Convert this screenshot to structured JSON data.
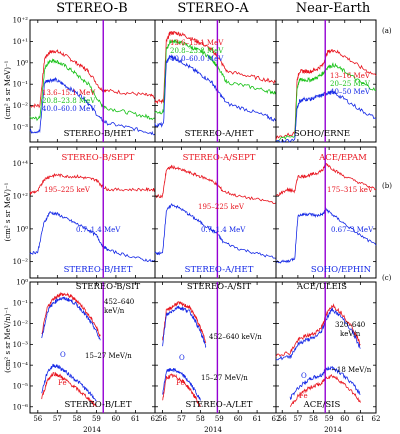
{
  "figure": {
    "columns": [
      "STEREO-B",
      "STEREO-A",
      "Near-Earth"
    ],
    "row_tags": [
      "(a)",
      "(b)",
      "(c)"
    ],
    "x_axis_year": "2014",
    "x_ticks": [
      "56",
      "57",
      "58",
      "59",
      "60",
      "61",
      "62"
    ],
    "ylabels": {
      "a": "(cm² s sr MeV)⁻¹",
      "b": "(cm² s sr MeV)⁻¹",
      "c": "(cm² s sr MeV/n)⁻¹"
    },
    "yticks": {
      "a": [
        "10⁻³",
        "10⁻²",
        "10⁻¹",
        "10⁰",
        "10⁺¹",
        "10⁺²"
      ],
      "b": [
        "10⁻²",
        "10⁰",
        "10⁺²",
        "10⁺⁴"
      ],
      "c": [
        "10⁻⁶",
        "10⁻⁵",
        "10⁻⁴",
        "10⁻³",
        "10⁻²",
        "10⁻¹",
        "10⁰"
      ]
    },
    "vertical_line_color": "#9400d3",
    "colors": {
      "red": "#e8141e",
      "green": "#19c219",
      "blue": "#1428e6",
      "black": "#000000"
    }
  },
  "chart_data": [
    {
      "type": "line",
      "row": "a",
      "col": 0,
      "instrument": "STEREO-B/HET",
      "ylog": [
        -3.7,
        2
      ],
      "xlim": [
        55.6,
        62
      ],
      "vline": 59.35,
      "series": [
        {
          "name": "13.6–15.1 MeV",
          "color": "red",
          "x": [
            55.6,
            56.1,
            56.35,
            56.6,
            56.9,
            57.3,
            57.8,
            58.3,
            58.6,
            59.2,
            59.5,
            60.5,
            61.5,
            62
          ],
          "y": [
            -2.0,
            -2.0,
            0.2,
            0.5,
            0.55,
            0.4,
            0.1,
            -0.2,
            -0.4,
            -1.2,
            -1.3,
            -1.4,
            -1.5,
            -1.6
          ]
        },
        {
          "name": "20.8–23.8 MeV",
          "color": "green",
          "x": [
            55.6,
            56.1,
            56.35,
            56.6,
            56.9,
            57.3,
            57.8,
            58.3,
            58.6,
            59.2,
            59.5,
            60.5,
            61.5,
            62
          ],
          "y": [
            -2.6,
            -2.6,
            -0.3,
            0.1,
            0.1,
            -0.1,
            -0.4,
            -0.8,
            -1.0,
            -1.9,
            -2.1,
            -2.3,
            -2.5,
            -2.6
          ]
        },
        {
          "name": "40.0–60.0 MeV",
          "color": "blue",
          "x": [
            55.6,
            56.1,
            56.35,
            56.6,
            56.9,
            57.3,
            57.8,
            58.3,
            58.6,
            59.2,
            59.5,
            60.5,
            61.5,
            62
          ],
          "y": [
            -3.2,
            -3.2,
            -0.9,
            -0.8,
            -0.8,
            -1.0,
            -1.3,
            -1.6,
            -1.9,
            -2.6,
            -2.8,
            -3.0,
            -3.2,
            -3.3
          ]
        }
      ]
    },
    {
      "type": "line",
      "row": "a",
      "col": 1,
      "instrument": "STEREO-A/HET",
      "ylog": [
        -3.7,
        2
      ],
      "xlim": [
        55.6,
        62
      ],
      "vline": 58.9,
      "series": [
        {
          "name": "13.6–15.1 MeV",
          "color": "red",
          "x": [
            55.6,
            56.05,
            56.2,
            56.4,
            56.7,
            57.1,
            57.6,
            58.1,
            58.6,
            58.9,
            59.4,
            60.5,
            61.5,
            62
          ],
          "y": [
            -1.8,
            -1.8,
            1.0,
            1.4,
            1.4,
            1.3,
            1.1,
            0.9,
            0.6,
            0.3,
            -0.4,
            -0.6,
            -0.8,
            -0.9
          ]
        },
        {
          "name": "20.8–23.8 MeV",
          "color": "green",
          "x": [
            55.6,
            56.05,
            56.2,
            56.4,
            56.7,
            57.1,
            57.6,
            58.1,
            58.6,
            58.9,
            59.4,
            60.5,
            61.5,
            62
          ],
          "y": [
            -2.3,
            -2.3,
            0.6,
            1.0,
            1.0,
            0.9,
            0.7,
            0.5,
            0.2,
            -0.2,
            -0.9,
            -1.1,
            -1.3,
            -1.4
          ]
        },
        {
          "name": "40.0–60.0 MeV",
          "color": "blue",
          "x": [
            55.6,
            56.05,
            56.2,
            56.4,
            56.7,
            57.1,
            57.6,
            58.1,
            58.6,
            58.9,
            59.4,
            60.5,
            61.5,
            62
          ],
          "y": [
            -2.9,
            -2.9,
            0.0,
            0.3,
            0.2,
            0.0,
            -0.3,
            -0.6,
            -0.9,
            -1.3,
            -1.9,
            -2.2,
            -2.5,
            -2.7
          ]
        }
      ]
    },
    {
      "type": "line",
      "row": "a",
      "col": 2,
      "instrument": "SOHO/ERNE",
      "ylog": [
        -3.7,
        2
      ],
      "xlim": [
        55.6,
        62
      ],
      "vline": 58.75,
      "series": [
        {
          "name": "13–16 MeV",
          "color": "red",
          "x": [
            55.6,
            56.8,
            56.95,
            57.1,
            57.4,
            57.8,
            58.2,
            58.6,
            58.9,
            59.3,
            60.0,
            61.0,
            62
          ],
          "y": [
            -3.5,
            -3.3,
            -0.8,
            -0.4,
            -0.4,
            -0.4,
            -0.3,
            -0.1,
            0.5,
            0.6,
            0.3,
            -0.2,
            -0.6
          ]
        },
        {
          "name": "20–25 MeV",
          "color": "green",
          "x": [
            55.6,
            56.8,
            56.95,
            57.1,
            57.4,
            57.8,
            58.2,
            58.6,
            58.9,
            59.3,
            60.0,
            61.0,
            62
          ],
          "y": [
            -3.6,
            -3.4,
            -1.2,
            -0.8,
            -0.8,
            -0.8,
            -0.7,
            -0.5,
            -0.2,
            -0.1,
            -0.4,
            -0.9,
            -1.3
          ]
        },
        {
          "name": "40–50 MeV",
          "color": "blue",
          "x": [
            55.6,
            56.8,
            56.95,
            57.1,
            57.4,
            57.8,
            58.2,
            58.6,
            58.9,
            59.3,
            60.0,
            61.0,
            62
          ],
          "y": [
            -3.7,
            -3.6,
            -2.1,
            -1.8,
            -1.7,
            -1.7,
            -1.6,
            -1.5,
            -1.4,
            -1.4,
            -1.7,
            -2.2,
            -2.6
          ]
        }
      ]
    },
    {
      "type": "line",
      "row": "b",
      "col": 0,
      "instrument_top": "STEREO-B/SEPT",
      "instrument_bottom": "STEREO-B/HET",
      "ylog": [
        -3,
        5
      ],
      "xlim": [
        55.6,
        62
      ],
      "vline": 59.35,
      "series": [
        {
          "name": "195–225 keV",
          "color": "red",
          "x": [
            55.6,
            56.0,
            56.3,
            56.6,
            57.0,
            57.5,
            58.0,
            58.5,
            59.0,
            59.3,
            59.6,
            60.5,
            61.5,
            62
          ],
          "y": [
            2.2,
            2.3,
            3.0,
            3.2,
            3.3,
            3.2,
            3.2,
            3.1,
            3.0,
            2.6,
            2.4,
            2.4,
            2.4,
            2.4
          ]
        },
        {
          "name": "0.7–1.4 MeV",
          "color": "blue",
          "x": [
            55.6,
            56.0,
            56.3,
            56.6,
            57.0,
            57.5,
            58.0,
            58.5,
            59.0,
            59.3,
            59.6,
            60.5,
            61.5,
            62
          ],
          "y": [
            -1.5,
            -1.4,
            0.3,
            1.0,
            0.9,
            0.6,
            0.3,
            0.0,
            -0.4,
            -1.0,
            -1.3,
            -1.6,
            -1.9,
            -2.0
          ]
        }
      ]
    },
    {
      "type": "line",
      "row": "b",
      "col": 1,
      "instrument_top": "STEREO-A/SEPT",
      "instrument_bottom": "STEREO-A/HET",
      "ylog": [
        -3,
        5
      ],
      "xlim": [
        55.6,
        62
      ],
      "vline": 58.9,
      "series": [
        {
          "name": "195–225 keV",
          "color": "red",
          "x": [
            55.6,
            56.0,
            56.2,
            56.5,
            57.0,
            57.5,
            58.0,
            58.5,
            58.9,
            59.2,
            60.0,
            61.0,
            62
          ],
          "y": [
            2.0,
            2.0,
            3.6,
            3.8,
            3.6,
            3.4,
            3.2,
            3.0,
            2.7,
            2.3,
            2.0,
            1.8,
            1.6
          ]
        },
        {
          "name": "0.7–1.4 MeV",
          "color": "blue",
          "x": [
            55.6,
            56.0,
            56.2,
            56.5,
            57.0,
            57.5,
            58.0,
            58.5,
            58.9,
            59.2,
            60.0,
            61.0,
            62
          ],
          "y": [
            -1.5,
            -1.5,
            1.1,
            1.5,
            1.2,
            0.8,
            0.4,
            0.0,
            -0.3,
            -0.8,
            -1.2,
            -1.5,
            -1.8
          ]
        }
      ]
    },
    {
      "type": "line",
      "row": "b",
      "col": 2,
      "instrument_top": "ACE/EPAM",
      "instrument_bottom": "SOHO/EPHIN",
      "ylog": [
        -3,
        5
      ],
      "xlim": [
        55.6,
        62
      ],
      "vline": 58.75,
      "series": [
        {
          "name": "175–315 keV",
          "color": "red",
          "x": [
            55.6,
            56.3,
            56.8,
            57.0,
            57.4,
            57.8,
            58.2,
            58.6,
            58.8,
            59.3,
            60.0,
            61.0,
            62
          ],
          "y": [
            2.0,
            2.4,
            2.3,
            3.2,
            3.2,
            3.3,
            3.4,
            3.6,
            4.0,
            3.6,
            3.2,
            2.8,
            2.4
          ]
        },
        {
          "name": "0.67–3 MeV",
          "color": "blue",
          "x": [
            55.6,
            56.3,
            56.8,
            57.0,
            57.4,
            57.8,
            58.2,
            58.6,
            58.8,
            59.3,
            60.0,
            61.0,
            62
          ],
          "y": [
            -2.0,
            -2.0,
            -1.8,
            0.8,
            0.9,
            0.9,
            0.8,
            0.9,
            1.2,
            0.8,
            0.3,
            -0.4,
            -1.0
          ]
        }
      ]
    },
    {
      "type": "line",
      "row": "c",
      "col": 0,
      "instrument_top": "STEREO-B/SIT",
      "instrument_bottom": "STEREO-B/LET",
      "ylog": [
        -6.3,
        0
      ],
      "xlim": [
        55.6,
        62
      ],
      "vline": 59.35,
      "series": [
        {
          "name": "452–640 keV/n",
          "color": "red",
          "x": [
            56.2,
            56.5,
            56.8,
            57.1,
            57.4,
            57.7,
            58.0,
            58.3,
            58.6,
            58.9,
            59.2
          ],
          "y": [
            -2.5,
            -1.2,
            -0.8,
            -0.6,
            -0.6,
            -0.7,
            -0.9,
            -1.2,
            -1.6,
            -2.0,
            -2.6
          ]
        },
        {
          "name": "452–640 keV/n",
          "color": "blue",
          "x": [
            56.2,
            56.5,
            56.8,
            57.1,
            57.4,
            57.7,
            58.0,
            58.3,
            58.6,
            58.9,
            59.2
          ],
          "y": [
            -2.7,
            -1.4,
            -1.0,
            -0.8,
            -0.8,
            -0.9,
            -1.1,
            -1.4,
            -1.8,
            -2.2,
            -2.8
          ]
        },
        {
          "name": "Fe",
          "color": "red",
          "x": [
            56.2,
            56.5,
            56.8,
            57.1,
            57.4,
            57.8,
            58.2,
            58.6,
            59.0
          ],
          "y": [
            -5.6,
            -4.7,
            -4.4,
            -4.5,
            -4.7,
            -5.0,
            -5.3,
            -5.6,
            -6.0
          ]
        },
        {
          "name": "O",
          "color": "blue",
          "x": [
            56.2,
            56.5,
            56.8,
            57.1,
            57.4,
            57.8,
            58.2,
            58.6,
            59.0
          ],
          "y": [
            -5.3,
            -4.3,
            -4.0,
            -4.1,
            -4.3,
            -4.6,
            -4.9,
            -5.3,
            -5.7
          ]
        }
      ]
    },
    {
      "type": "line",
      "row": "c",
      "col": 1,
      "instrument_top": "STEREO-A/SIT",
      "instrument_bottom": "STEREO-A/LET",
      "ylog": [
        -6.3,
        0
      ],
      "xlim": [
        55.6,
        62
      ],
      "vline": 58.9,
      "series": [
        {
          "name": "452–640 keV/n",
          "color": "red",
          "x": [
            56.0,
            56.2,
            56.5,
            56.8,
            57.1,
            57.4,
            57.7,
            58.0,
            58.3
          ],
          "y": [
            -2.8,
            -1.4,
            -1.2,
            -1.0,
            -1.1,
            -1.2,
            -1.6,
            -2.2,
            -2.9
          ]
        },
        {
          "name": "452–640 keV/n",
          "color": "blue",
          "x": [
            56.0,
            56.2,
            56.5,
            56.8,
            57.1,
            57.4,
            57.7,
            58.0,
            58.3
          ],
          "y": [
            -3.0,
            -1.6,
            -1.4,
            -1.2,
            -1.3,
            -1.4,
            -1.8,
            -2.4,
            -3.1
          ]
        },
        {
          "name": "Fe",
          "color": "red",
          "x": [
            56.0,
            56.2,
            56.5,
            56.8,
            57.1,
            57.4,
            57.7,
            58.0
          ],
          "y": [
            -5.7,
            -4.6,
            -4.5,
            -4.6,
            -4.8,
            -5.1,
            -5.5,
            -6.0
          ]
        },
        {
          "name": "O",
          "color": "blue",
          "x": [
            56.0,
            56.2,
            56.5,
            56.8,
            57.1,
            57.4,
            57.7,
            58.0
          ],
          "y": [
            -5.4,
            -4.3,
            -4.2,
            -4.3,
            -4.5,
            -4.8,
            -5.2,
            -5.7
          ]
        }
      ]
    },
    {
      "type": "line",
      "row": "c",
      "col": 2,
      "instrument_top": "ACE/ULEIS",
      "instrument_bottom": "ACE/SIS",
      "ylog": [
        -6.3,
        0
      ],
      "xlim": [
        55.6,
        62
      ],
      "vline": 58.75,
      "series": [
        {
          "name": "320–640 keV/n",
          "color": "red",
          "x": [
            55.6,
            56.5,
            57.0,
            57.5,
            58.0,
            58.5,
            58.8,
            59.2,
            59.8,
            60.5,
            61.0
          ],
          "y": [
            -3.5,
            -3.4,
            -2.8,
            -2.6,
            -2.5,
            -2.2,
            -1.6,
            -1.1,
            -1.5,
            -2.2,
            -3.0
          ]
        },
        {
          "name": "320–640 keV/n",
          "color": "blue",
          "x": [
            55.6,
            56.5,
            57.0,
            57.5,
            58.0,
            58.5,
            58.8,
            59.2,
            59.8,
            60.5,
            61.0
          ],
          "y": [
            -3.7,
            -3.6,
            -3.0,
            -2.8,
            -2.7,
            -2.4,
            -1.8,
            -1.3,
            -1.7,
            -2.4,
            -3.2
          ]
        },
        {
          "name": "Fe",
          "color": "red",
          "x": [
            56.5,
            57.0,
            57.5,
            58.0,
            58.5,
            58.8,
            59.2,
            59.8,
            60.5,
            61.0
          ],
          "y": [
            -6.0,
            -5.5,
            -5.2,
            -5.0,
            -4.9,
            -4.6,
            -4.5,
            -4.8,
            -5.3,
            -5.8
          ]
        },
        {
          "name": "O",
          "color": "blue",
          "x": [
            56.5,
            57.0,
            57.5,
            58.0,
            58.5,
            58.8,
            59.2,
            59.8,
            60.5,
            61.0
          ],
          "y": [
            -5.6,
            -5.1,
            -4.8,
            -4.6,
            -4.5,
            -4.2,
            -4.1,
            -4.4,
            -4.9,
            -5.4
          ]
        }
      ]
    }
  ],
  "labels": {
    "a0": [
      "13.6–15.1 MeV",
      "20.8–23.8 MeV",
      "40.0–60.0 MeV"
    ],
    "a1": [
      "13.6–15.1 MeV",
      "20.8–23.8 MeV",
      "40.0–60.0 MeV"
    ],
    "a2": [
      "13–16 MeV",
      "20–25 MeV",
      "40–50 MeV"
    ],
    "b0": [
      "195–225 keV",
      "0.7–1.4 MeV"
    ],
    "b1": [
      "195–225 keV",
      "0.7–1.4 MeV"
    ],
    "b2": [
      "175–315 keV",
      "0.67–3 MeV"
    ],
    "c0": [
      "452–640",
      "keV/n",
      "15–27 MeV/n",
      "O",
      "Fe"
    ],
    "c1": [
      "452–640 keV/n",
      "15–27 MeV/n",
      "O",
      "Fe"
    ],
    "c2": [
      "320–640",
      "keV/n",
      "~18 MeV/n",
      "O",
      "Fe"
    ]
  }
}
